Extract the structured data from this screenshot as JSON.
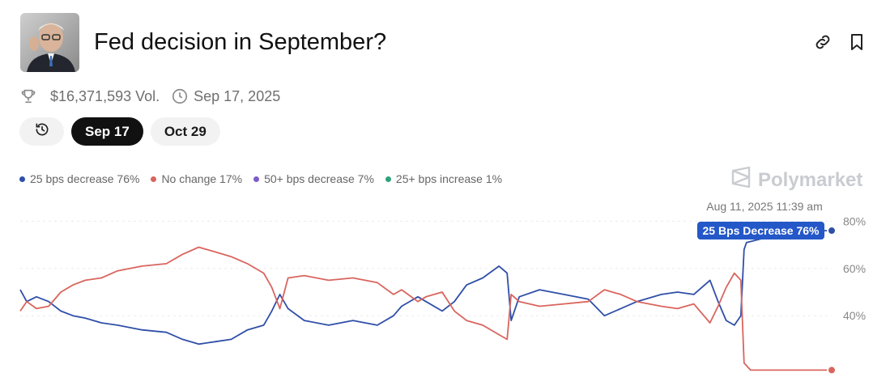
{
  "header": {
    "title": "Fed decision in September?",
    "volume": "$16,371,593 Vol.",
    "date": "Sep 17, 2025"
  },
  "tabs": [
    {
      "label": "Sep 17",
      "active": true
    },
    {
      "label": "Oct 29",
      "active": false
    }
  ],
  "brand": "Polymarket",
  "tooltip": {
    "timestamp": "Aug 11, 2025 11:39 am",
    "label": "25 Bps Decrease 76%"
  },
  "colors": {
    "blue": "#2f4fa8",
    "red": "#d9655e",
    "purple": "#7b5cc9",
    "green": "#2ea37a",
    "tooltip_bg": "#2457c8"
  },
  "icons": [
    "trophy-icon",
    "clock-icon",
    "history-icon",
    "link-icon",
    "bookmark-icon",
    "polymarket-logo-icon"
  ],
  "chart_data": {
    "type": "line",
    "x_range": [
      0,
      1
    ],
    "ylim": [
      12,
      88
    ],
    "yticks": [
      40,
      60,
      80
    ],
    "ytick_labels": [
      "40%",
      "60%",
      "80%"
    ],
    "grid": true,
    "legend_position": "top-left",
    "series": [
      {
        "name": "25 bps decrease",
        "legend": "25 bps decrease 76%",
        "color": "#2f4fa8",
        "points": [
          [
            0,
            51
          ],
          [
            0.008,
            46
          ],
          [
            0.02,
            48
          ],
          [
            0.035,
            46
          ],
          [
            0.05,
            42
          ],
          [
            0.065,
            40
          ],
          [
            0.08,
            39
          ],
          [
            0.1,
            37
          ],
          [
            0.12,
            36
          ],
          [
            0.15,
            34
          ],
          [
            0.18,
            33
          ],
          [
            0.2,
            30
          ],
          [
            0.22,
            28
          ],
          [
            0.24,
            29
          ],
          [
            0.26,
            30
          ],
          [
            0.28,
            34
          ],
          [
            0.3,
            36
          ],
          [
            0.31,
            42
          ],
          [
            0.32,
            49
          ],
          [
            0.33,
            43
          ],
          [
            0.35,
            38
          ],
          [
            0.38,
            36
          ],
          [
            0.41,
            38
          ],
          [
            0.44,
            36
          ],
          [
            0.46,
            40
          ],
          [
            0.47,
            44
          ],
          [
            0.49,
            48
          ],
          [
            0.5,
            46
          ],
          [
            0.52,
            42
          ],
          [
            0.535,
            46
          ],
          [
            0.55,
            53
          ],
          [
            0.57,
            56
          ],
          [
            0.59,
            61
          ],
          [
            0.6,
            58
          ],
          [
            0.605,
            38
          ],
          [
            0.615,
            48
          ],
          [
            0.64,
            51
          ],
          [
            0.67,
            49
          ],
          [
            0.7,
            47
          ],
          [
            0.72,
            40
          ],
          [
            0.74,
            43
          ],
          [
            0.76,
            46
          ],
          [
            0.79,
            49
          ],
          [
            0.81,
            50
          ],
          [
            0.83,
            49
          ],
          [
            0.85,
            55
          ],
          [
            0.86,
            46
          ],
          [
            0.87,
            38
          ],
          [
            0.88,
            36
          ],
          [
            0.888,
            40
          ],
          [
            0.892,
            68
          ],
          [
            0.895,
            71
          ],
          [
            0.93,
            74
          ],
          [
            0.96,
            76
          ],
          [
            1.0,
            76
          ]
        ]
      },
      {
        "name": "No change",
        "legend": "No change 17%",
        "color": "#d9655e",
        "points": [
          [
            0,
            42
          ],
          [
            0.008,
            46
          ],
          [
            0.02,
            43
          ],
          [
            0.035,
            44
          ],
          [
            0.05,
            50
          ],
          [
            0.065,
            53
          ],
          [
            0.08,
            55
          ],
          [
            0.1,
            56
          ],
          [
            0.12,
            59
          ],
          [
            0.15,
            61
          ],
          [
            0.18,
            62
          ],
          [
            0.2,
            66
          ],
          [
            0.22,
            69
          ],
          [
            0.24,
            67
          ],
          [
            0.26,
            65
          ],
          [
            0.28,
            62
          ],
          [
            0.3,
            58
          ],
          [
            0.31,
            52
          ],
          [
            0.32,
            43
          ],
          [
            0.33,
            56
          ],
          [
            0.35,
            57
          ],
          [
            0.38,
            55
          ],
          [
            0.41,
            56
          ],
          [
            0.44,
            54
          ],
          [
            0.46,
            49
          ],
          [
            0.47,
            51
          ],
          [
            0.49,
            46
          ],
          [
            0.5,
            48
          ],
          [
            0.52,
            50
          ],
          [
            0.535,
            42
          ],
          [
            0.55,
            38
          ],
          [
            0.57,
            36
          ],
          [
            0.59,
            32
          ],
          [
            0.6,
            30
          ],
          [
            0.605,
            49
          ],
          [
            0.615,
            46
          ],
          [
            0.64,
            44
          ],
          [
            0.67,
            45
          ],
          [
            0.7,
            46
          ],
          [
            0.72,
            51
          ],
          [
            0.74,
            49
          ],
          [
            0.76,
            46
          ],
          [
            0.79,
            44
          ],
          [
            0.81,
            43
          ],
          [
            0.83,
            45
          ],
          [
            0.85,
            37
          ],
          [
            0.86,
            44
          ],
          [
            0.87,
            52
          ],
          [
            0.88,
            58
          ],
          [
            0.888,
            55
          ],
          [
            0.892,
            20
          ],
          [
            0.9,
            17
          ],
          [
            1.0,
            17
          ]
        ]
      },
      {
        "name": "50+ bps decrease",
        "legend": "50+ bps decrease 7%",
        "color": "#7b5cc9",
        "points": []
      },
      {
        "name": "25+ bps increase",
        "legend": "25+ bps increase 1%",
        "color": "#2ea37a",
        "points": []
      }
    ]
  }
}
